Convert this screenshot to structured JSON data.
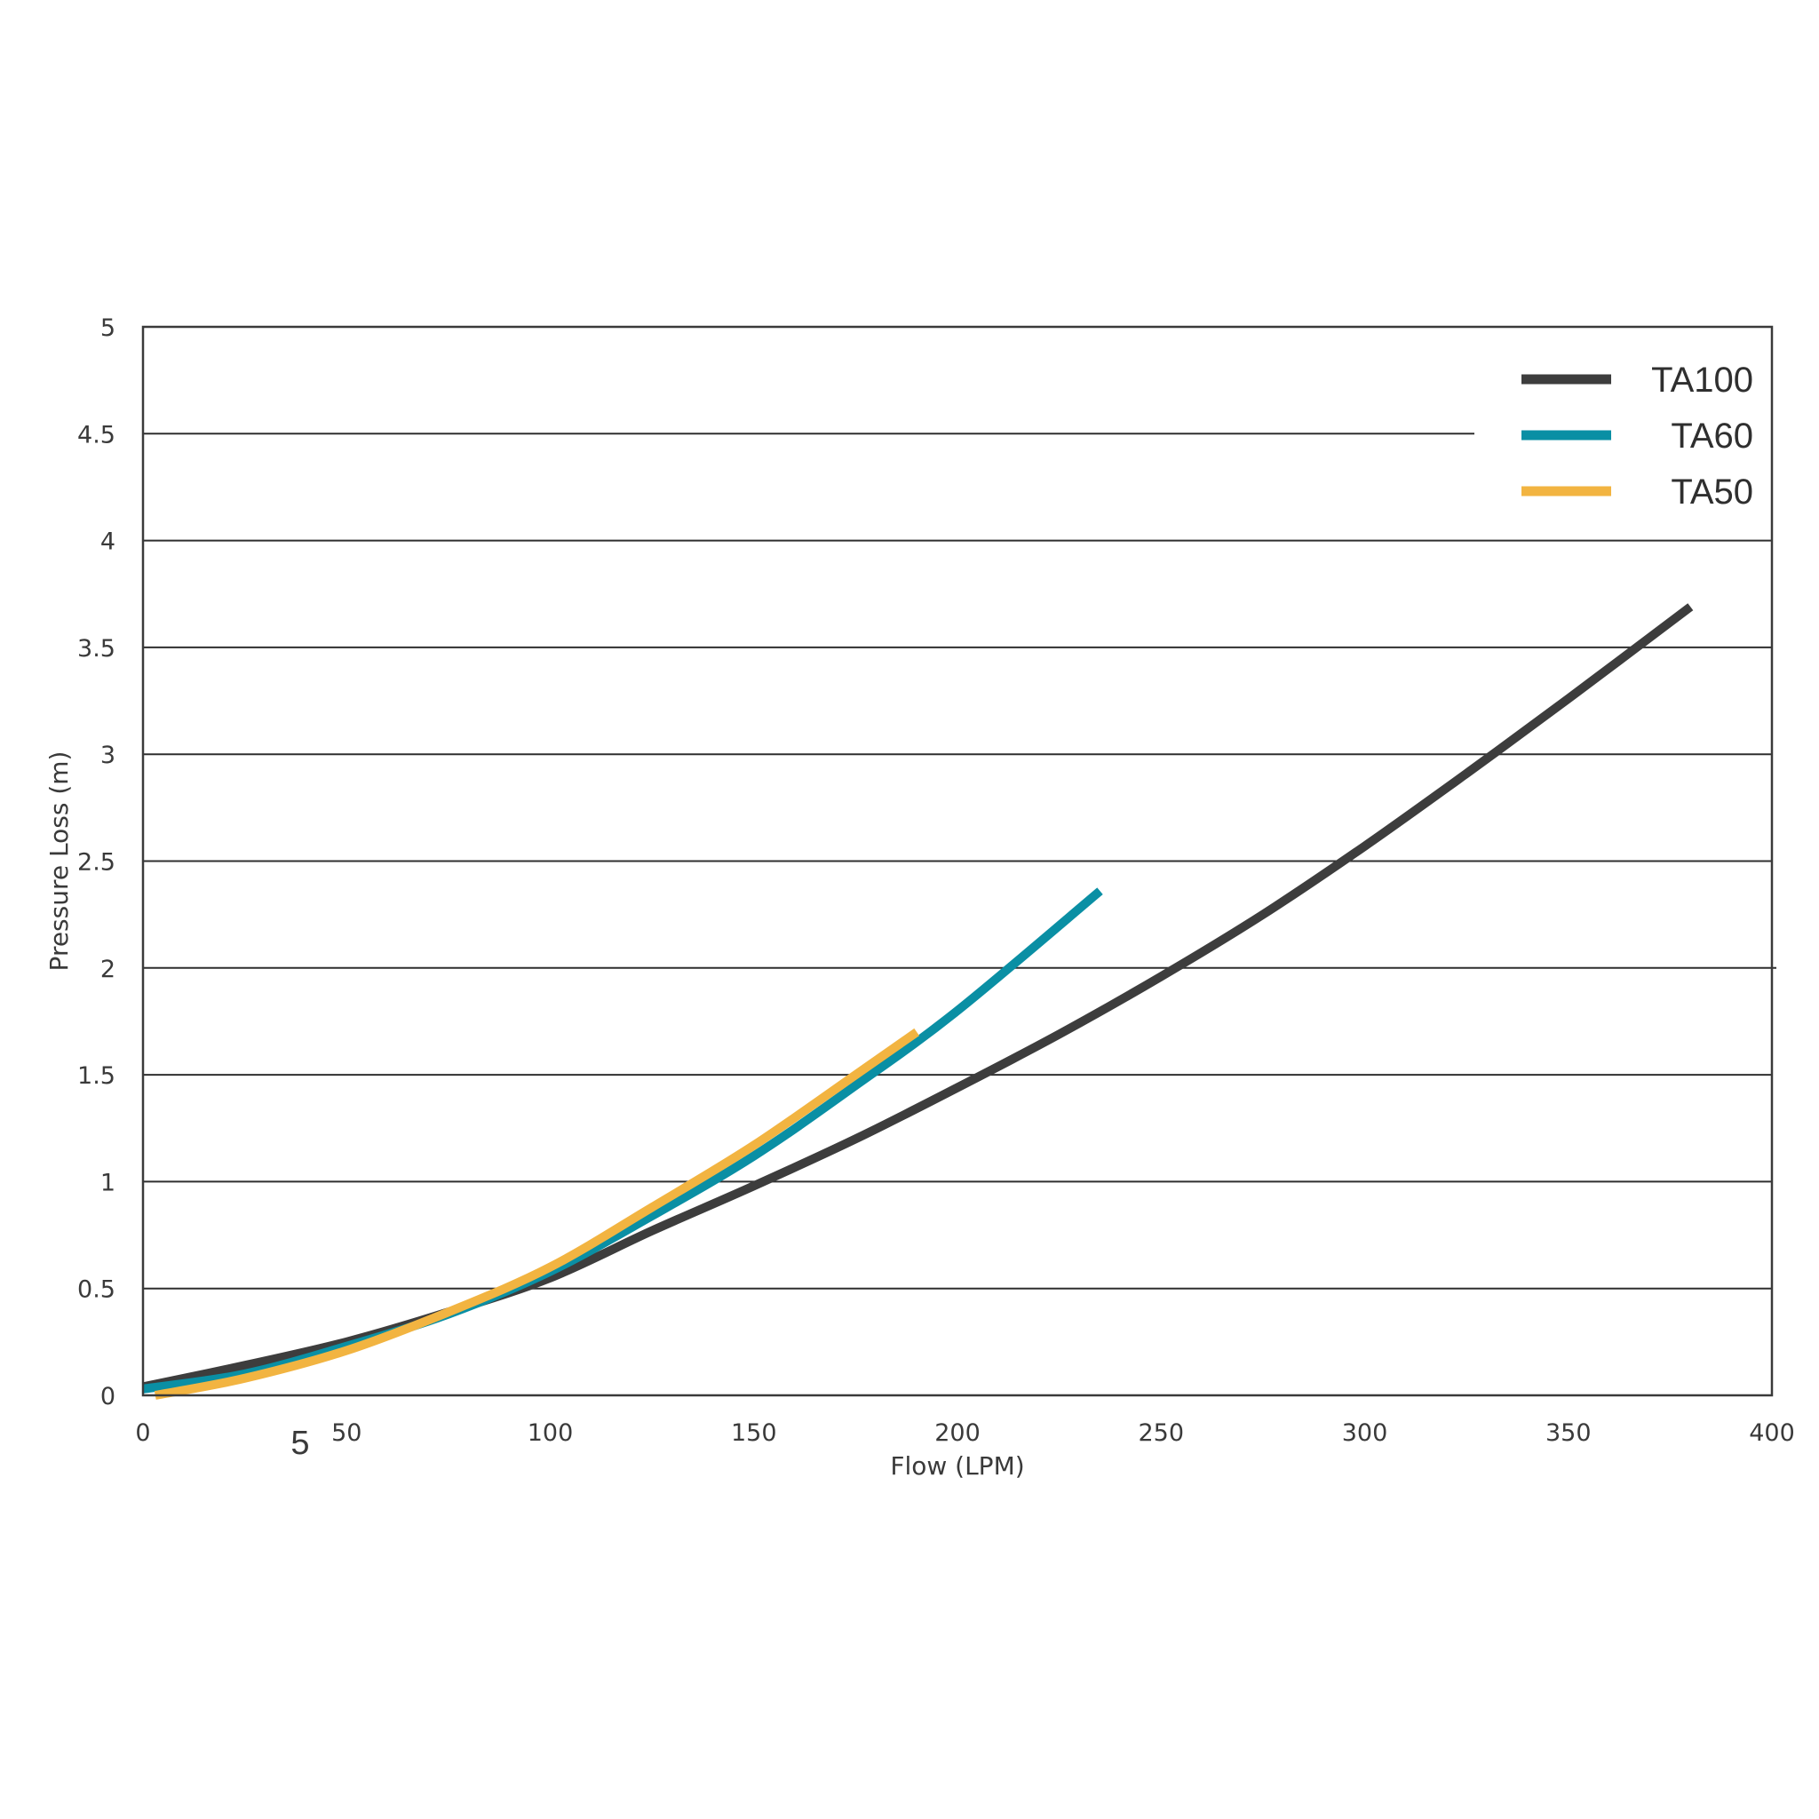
{
  "chart_data": {
    "type": "line",
    "title": "",
    "xlabel": "Flow (LPM)",
    "ylabel": "Pressure Loss (m)",
    "xlim": [
      0,
      400
    ],
    "ylim": [
      0,
      5
    ],
    "x_ticks": [
      "0",
      "50",
      "100",
      "150",
      "200",
      "250",
      "300",
      "350",
      "400"
    ],
    "y_ticks": [
      "0",
      "0.5",
      "1",
      "1.5",
      "2",
      "2.5",
      "3",
      "3.5",
      "4",
      "4.5",
      "5"
    ],
    "grid": "horizontal",
    "legend_position": "top-right",
    "extra_label": "5",
    "series": [
      {
        "name": "TA100",
        "color": "#3d3d3d",
        "x": [
          0,
          25,
          50,
          75,
          100,
          125,
          150,
          175,
          200,
          225,
          250,
          275,
          300,
          325,
          350,
          380
        ],
        "y": [
          0.04,
          0.14,
          0.25,
          0.39,
          0.55,
          0.77,
          0.98,
          1.2,
          1.44,
          1.69,
          1.96,
          2.25,
          2.57,
          2.91,
          3.26,
          3.69
        ]
      },
      {
        "name": "TA60",
        "color": "#0a8fa4",
        "x": [
          0,
          25,
          50,
          75,
          100,
          125,
          150,
          175,
          200,
          235
        ],
        "y": [
          0.03,
          0.1,
          0.23,
          0.38,
          0.58,
          0.84,
          1.12,
          1.45,
          1.8,
          2.36
        ]
      },
      {
        "name": "TA50",
        "color": "#f2b441",
        "x": [
          3,
          25,
          50,
          75,
          100,
          125,
          150,
          175,
          190
        ],
        "y": [
          0.0,
          0.08,
          0.21,
          0.39,
          0.6,
          0.88,
          1.17,
          1.5,
          1.7
        ]
      }
    ]
  }
}
